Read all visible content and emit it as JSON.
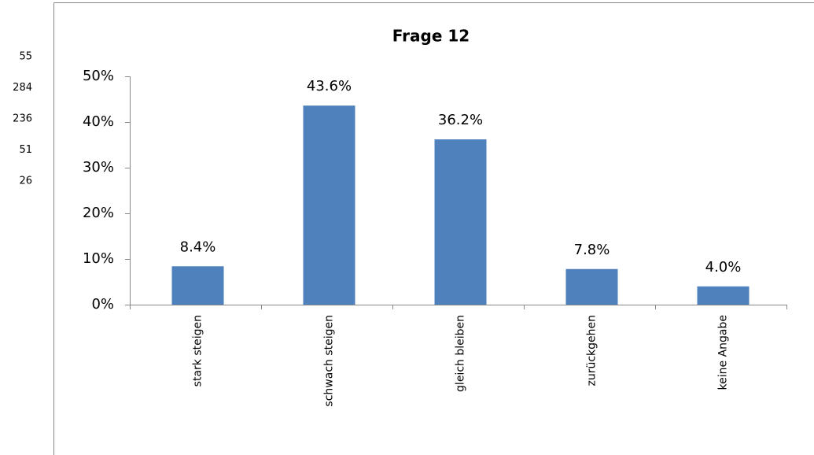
{
  "cells": [
    55,
    284,
    236,
    51,
    26
  ],
  "chart_data": {
    "type": "bar",
    "title": "Frage 12",
    "categories": [
      "stark steigen",
      "schwach steigen",
      "gleich bleiben",
      "zurückgehen",
      "keine Angabe"
    ],
    "values": [
      8.4,
      43.6,
      36.2,
      7.8,
      4.0
    ],
    "value_labels": [
      "8.4%",
      "43.6%",
      "36.2%",
      "7.8%",
      "4.0%"
    ],
    "color": "#4f81bd",
    "ylim": [
      0,
      50
    ],
    "yticks": [
      {
        "value": 0,
        "label": "0%"
      },
      {
        "value": 10,
        "label": "10%"
      },
      {
        "value": 20,
        "label": "20%"
      },
      {
        "value": 30,
        "label": "30%"
      },
      {
        "value": 40,
        "label": "40%"
      },
      {
        "value": 50,
        "label": "50%"
      }
    ],
    "grid": false
  }
}
